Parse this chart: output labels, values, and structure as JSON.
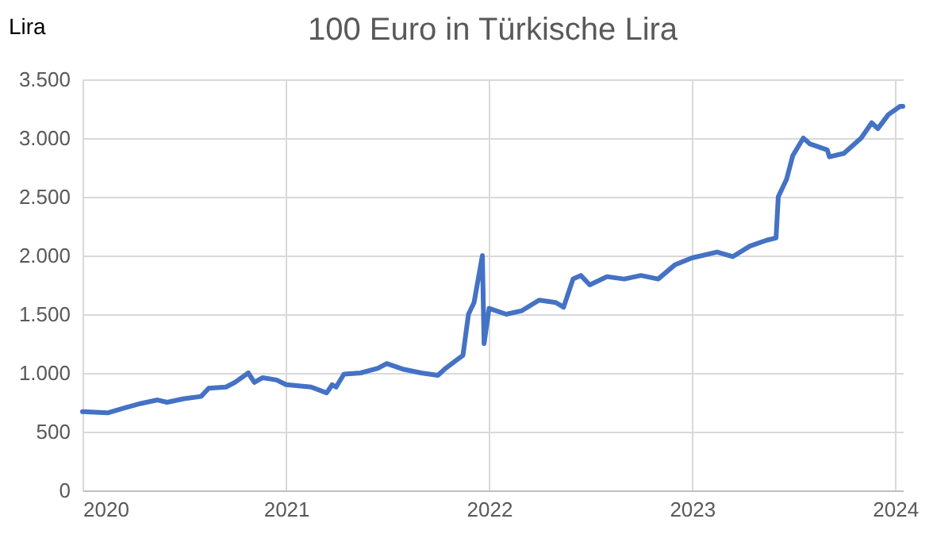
{
  "chart_data": {
    "type": "line",
    "title": "100 Euro in Türkische Lira",
    "ylabel": "Lira",
    "x": [
      "2020-01-01",
      "2020-02-15",
      "2020-03-15",
      "2020-04-15",
      "2020-05-15",
      "2020-06-01",
      "2020-07-01",
      "2020-08-01",
      "2020-08-15",
      "2020-09-15",
      "2020-10-01",
      "2020-10-25",
      "2020-11-05",
      "2020-11-20",
      "2020-12-15",
      "2021-01-01",
      "2021-02-15",
      "2021-03-15",
      "2021-03-25",
      "2021-04-01",
      "2021-04-15",
      "2021-05-15",
      "2021-06-15",
      "2021-07-01",
      "2021-08-01",
      "2021-09-01",
      "2021-10-01",
      "2021-10-15",
      "2021-11-01",
      "2021-11-15",
      "2021-11-25",
      "2021-12-05",
      "2021-12-20",
      "2021-12-23",
      "2022-01-01",
      "2022-02-01",
      "2022-03-01",
      "2022-04-01",
      "2022-05-01",
      "2022-05-15",
      "2022-06-01",
      "2022-06-15",
      "2022-07-01",
      "2022-08-01",
      "2022-09-01",
      "2022-10-01",
      "2022-11-01",
      "2022-12-01",
      "2023-01-01",
      "2023-02-15",
      "2023-03-15",
      "2023-04-15",
      "2023-05-15",
      "2023-06-01",
      "2023-06-05",
      "2023-06-20",
      "2023-07-01",
      "2023-07-20",
      "2023-08-01",
      "2023-09-01",
      "2023-09-05",
      "2023-10-01",
      "2023-11-01",
      "2023-11-20",
      "2023-12-01",
      "2023-12-20",
      "2024-01-10",
      "2024-01-15"
    ],
    "series": [
      {
        "color": "#4472c4",
        "values": [
          670,
          660,
          700,
          740,
          770,
          750,
          780,
          800,
          870,
          880,
          920,
          1000,
          920,
          960,
          940,
          900,
          880,
          830,
          900,
          880,
          990,
          1000,
          1040,
          1080,
          1030,
          1000,
          980,
          1040,
          1100,
          1150,
          1500,
          1600,
          2000,
          1250,
          1550,
          1500,
          1530,
          1620,
          1600,
          1560,
          1800,
          1830,
          1750,
          1820,
          1800,
          1830,
          1800,
          1920,
          1980,
          2030,
          1990,
          2080,
          2130,
          2150,
          2500,
          2650,
          2850,
          3000,
          2950,
          2900,
          2840,
          2870,
          3000,
          3130,
          3080,
          3200,
          3270,
          3270
        ]
      }
    ],
    "xlim": [
      "2020-01-01",
      "2024-01-15"
    ],
    "xticks": [
      {
        "value": "2020-01-01",
        "label": "2020"
      },
      {
        "value": "2021-01-01",
        "label": "2021"
      },
      {
        "value": "2022-01-01",
        "label": "2022"
      },
      {
        "value": "2023-01-01",
        "label": "2023"
      },
      {
        "value": "2024-01-01",
        "label": "2024"
      }
    ],
    "ylim": [
      0,
      3500
    ],
    "yticks": [
      0,
      {
        "value": 500,
        "label": "500"
      },
      {
        "value": 1000,
        "label": "1.000"
      },
      {
        "value": 1500,
        "label": "1.500"
      },
      {
        "value": 2000,
        "label": "2.000"
      },
      {
        "value": 2500,
        "label": "2.500"
      },
      {
        "value": 3000,
        "label": "3.000"
      },
      {
        "value": 3500,
        "label": "3.500"
      }
    ],
    "grid": true,
    "marker": "none",
    "line_style": "solid"
  }
}
